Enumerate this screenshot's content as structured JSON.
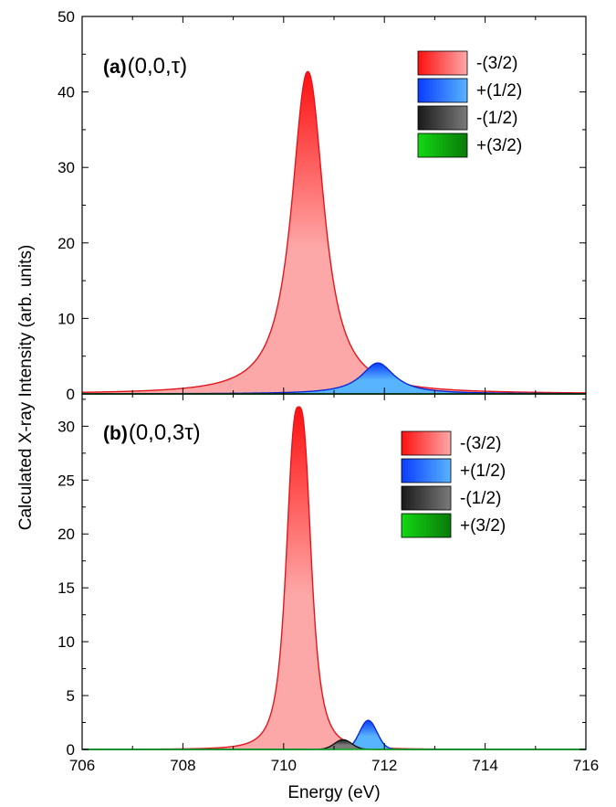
{
  "colors": {
    "red_line": "#e3161c",
    "red_dark": "#ff1010",
    "red_light": "#fda8a8",
    "blue_line": "#0a28d8",
    "blue_dark": "#0a3cff",
    "blue_light": "#58b4ff",
    "black_line": "#111111",
    "black_dark": "#1a1a1a",
    "black_light": "#7a7a7a",
    "green_line": "#10b020",
    "green_dark": "#12d812",
    "green_light": "#0a7a0a"
  },
  "chart_data": [
    {
      "type": "area",
      "panel_label_bold": "(a)",
      "panel_label_text": "(0,0,τ)",
      "xlabel": "Energy (eV)",
      "ylabel": "Calculated X-ray Intensity (arb. units)",
      "xlim": [
        706,
        716
      ],
      "ylim": [
        0,
        50
      ],
      "yticks": [
        0,
        10,
        20,
        30,
        40,
        50
      ],
      "ytick_labels": [
        "0",
        "10",
        "20",
        "30",
        "40",
        "50"
      ],
      "legend_position": "top-right",
      "series": [
        {
          "name": "-(3/2)",
          "color_key": "red",
          "center": 710.48,
          "amplitude": 42.7,
          "width": 0.38,
          "sigma": 0,
          "exp": 2.15
        },
        {
          "name": "+(1/2)",
          "color_key": "blue",
          "center": 711.87,
          "amplitude": 4.1,
          "width": 0.4,
          "sigma": 0,
          "exp": 2.0
        },
        {
          "name": "-(1/2)",
          "color_key": "black",
          "center": 711.5,
          "amplitude": 0.0,
          "width": 0.3,
          "sigma": 0,
          "exp": 2.0
        },
        {
          "name": "+(3/2)",
          "color_key": "green",
          "center": 711.0,
          "amplitude": 0.0,
          "width": 0.3,
          "sigma": 0,
          "exp": 2.0
        }
      ]
    },
    {
      "type": "area",
      "panel_label_bold": "(b)",
      "panel_label_text": "(0,0,3τ)",
      "xlabel": "Energy (eV)",
      "ylabel": "Calculated X-ray Intensity (arb. units)",
      "xlim": [
        706,
        716
      ],
      "ylim": [
        0,
        33
      ],
      "yticks": [
        0,
        5,
        10,
        15,
        20,
        25,
        30
      ],
      "ytick_labels": [
        "0",
        "5",
        "10",
        "15",
        "20",
        "25",
        "30"
      ],
      "xticks": [
        706,
        708,
        710,
        712,
        714,
        716
      ],
      "xtick_labels": [
        "706",
        "708",
        "710",
        "712",
        "714",
        "716"
      ],
      "legend_position": "top-right",
      "series": [
        {
          "name": "-(3/2)",
          "color_key": "red",
          "center": 710.3,
          "amplitude": 31.8,
          "width": 0.27,
          "sigma": 0,
          "exp": 3.0
        },
        {
          "name": "+(1/2)",
          "color_key": "blue",
          "center": 711.68,
          "amplitude": 2.7,
          "width": 0,
          "sigma": 0.17,
          "exp": 2.0
        },
        {
          "name": "-(1/2)",
          "color_key": "black",
          "center": 711.18,
          "amplitude": 0.9,
          "width": 0,
          "sigma": 0.17,
          "exp": 2.0
        },
        {
          "name": "+(3/2)",
          "color_key": "green",
          "center": 711.0,
          "amplitude": 0.0,
          "width": 0.3,
          "sigma": 0,
          "exp": 2.0
        }
      ]
    }
  ]
}
